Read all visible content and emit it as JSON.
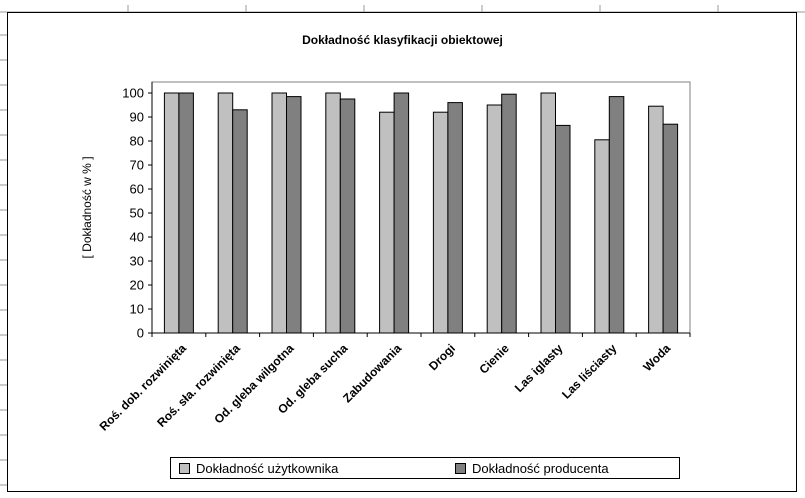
{
  "chart_data": {
    "type": "bar",
    "title": "Dokładność klasyfikacji obiektowej",
    "ylabel": "[ Dokładność w  % ]",
    "xlabel": "",
    "ylim": [
      0,
      100
    ],
    "yticks": [
      0,
      10,
      20,
      30,
      40,
      50,
      60,
      70,
      80,
      90,
      100
    ],
    "grid": false,
    "legend_position": "bottom",
    "categories": [
      "Roś. dob. rozwinięta",
      "Roś. sła. rozwinięta",
      "Od. gleba wilgotna",
      "Od. gleba sucha",
      "Zabudowania",
      "Drogi",
      "Cienie",
      "Las iglasty",
      "Las liściasty",
      "Woda"
    ],
    "series": [
      {
        "name": "Dokładność użytkownika",
        "color": "#c0c0c0",
        "values": [
          100,
          100,
          100,
          100,
          92,
          92,
          95,
          100,
          80.5,
          94.5
        ]
      },
      {
        "name": "Dokładność producenta",
        "color": "#808080",
        "values": [
          100,
          93,
          98.5,
          97.5,
          100,
          96,
          99.5,
          86.5,
          98.5,
          87
        ]
      }
    ]
  }
}
